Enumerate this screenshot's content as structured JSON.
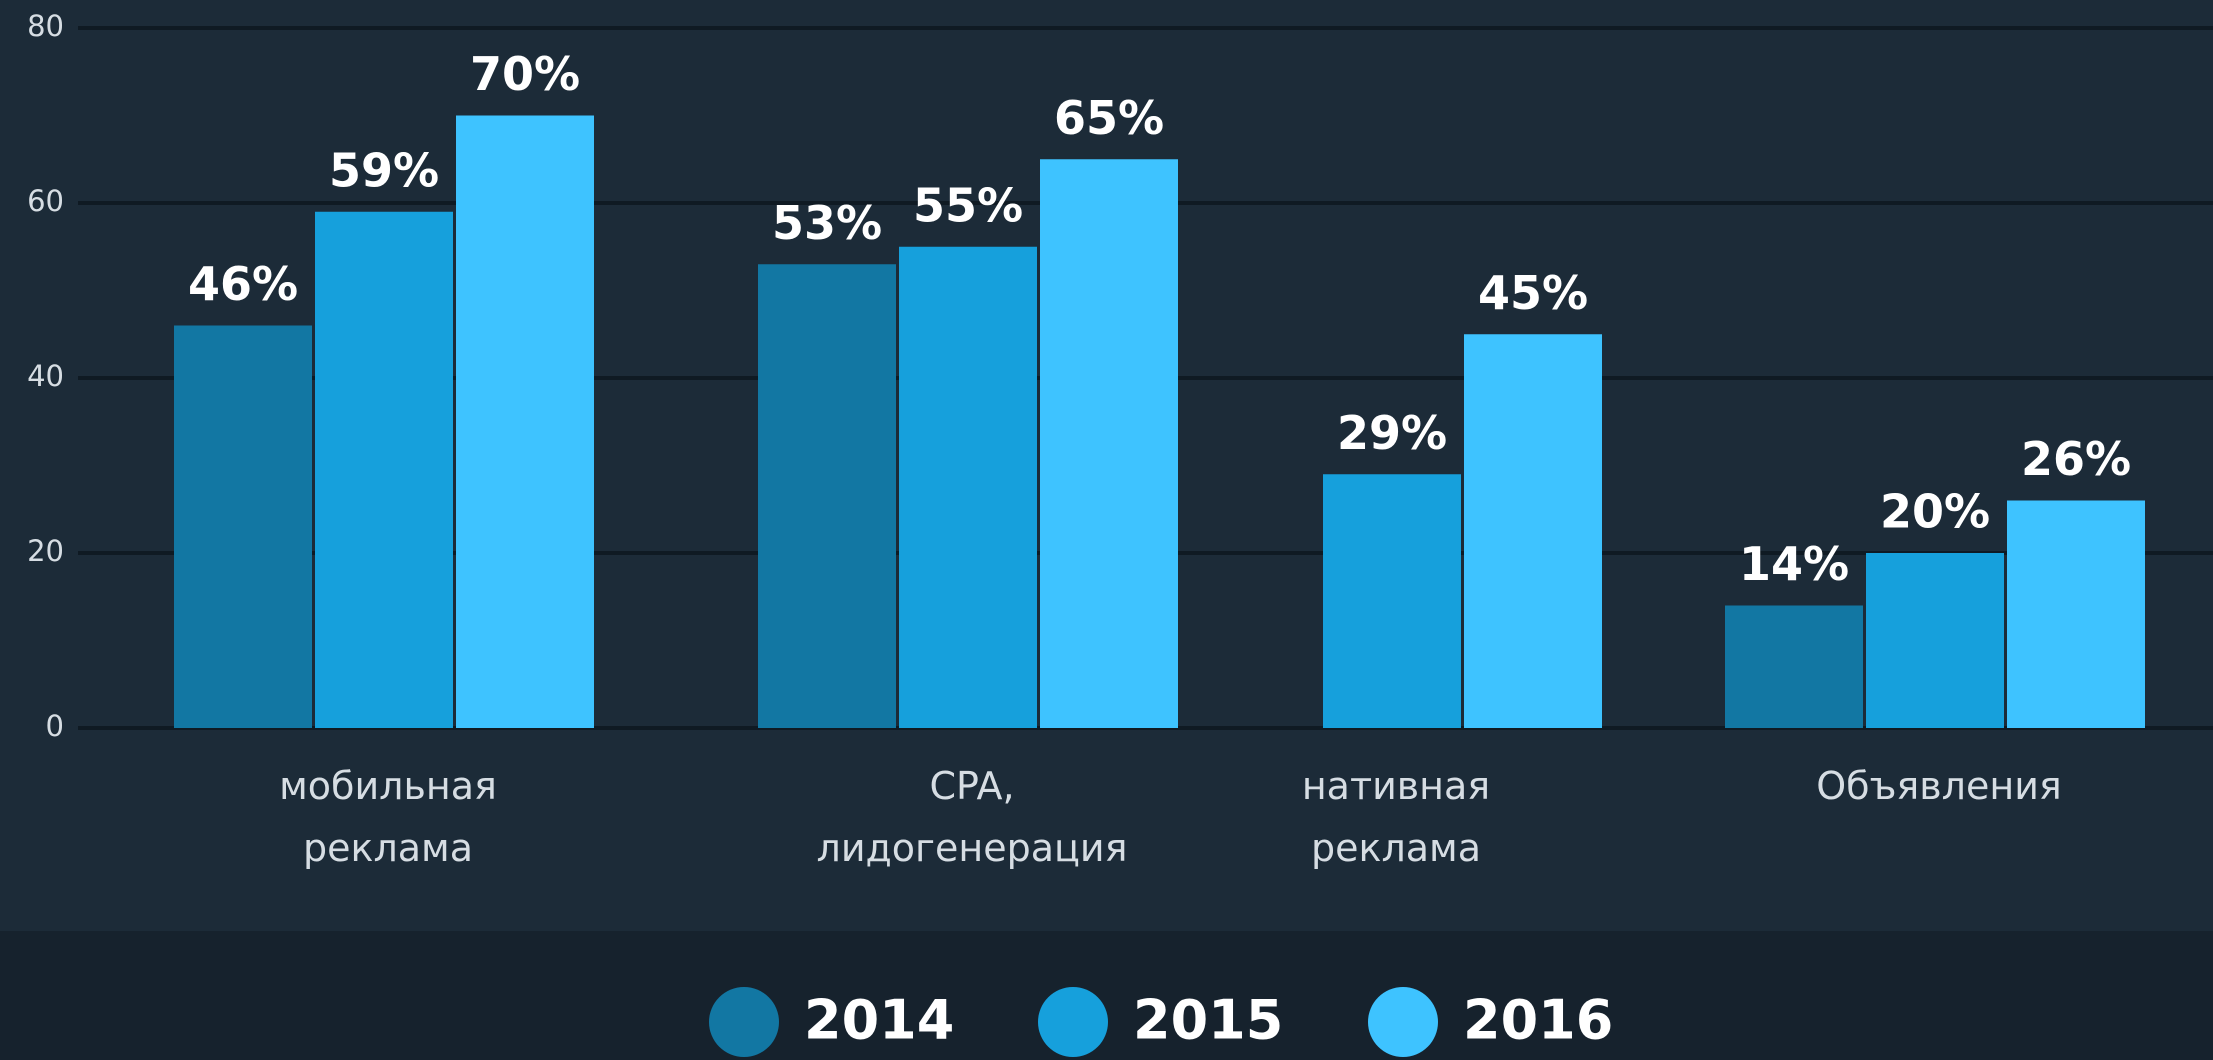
{
  "chart_data": {
    "type": "bar",
    "categories": [
      "мобильная реклама",
      "CPA, лидогенерация",
      "нативная реклама",
      "Объявления"
    ],
    "series": [
      {
        "name": "2014",
        "color": "#1277a3",
        "values": [
          46,
          53,
          null,
          14
        ],
        "value_labels": [
          "46%",
          "53%",
          null,
          "14%"
        ]
      },
      {
        "name": "2015",
        "color": "#16a0dc",
        "values": [
          59,
          55,
          29,
          20
        ],
        "value_labels": [
          "59%",
          "55%",
          "29%",
          "20%"
        ]
      },
      {
        "name": "2016",
        "color": "#3ec3ff",
        "values": [
          70,
          65,
          45,
          26
        ],
        "value_labels": [
          "70%",
          "65%",
          "45%",
          "26%"
        ]
      }
    ],
    "ylim": [
      0,
      80
    ],
    "yticks": [
      0,
      20,
      40,
      60,
      80
    ],
    "grid": true,
    "legend": "bottom"
  }
}
